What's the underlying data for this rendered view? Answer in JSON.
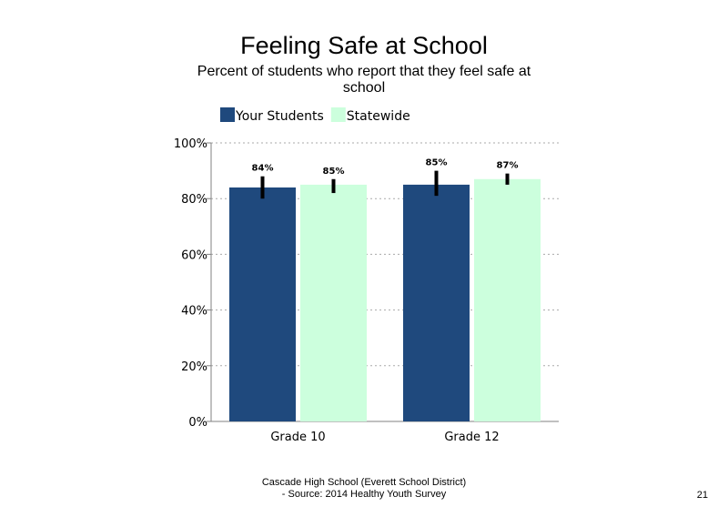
{
  "slide": {
    "title": "Feeling Safe at School",
    "subtitle": "Percent of students  who report that they feel safe at school",
    "footer_line1": "Cascade High  School (Everett School District)",
    "footer_line2": "- Source: 2014 Healthy  Youth Survey",
    "page_number": "21"
  },
  "chart_data": {
    "type": "bar",
    "categories": [
      "Grade 10",
      "Grade 12"
    ],
    "series": [
      {
        "name": "Your Students",
        "color": "#1f497d",
        "values": [
          84,
          85
        ],
        "labels": [
          "84%",
          "85%"
        ],
        "error": [
          [
            80,
            88
          ],
          [
            81,
            90
          ]
        ]
      },
      {
        "name": "Statewide",
        "color": "#ccffdd",
        "values": [
          85,
          87
        ],
        "labels": [
          "85%",
          "87%"
        ],
        "error": [
          [
            82,
            87
          ],
          [
            85,
            89
          ]
        ]
      }
    ],
    "ylim": [
      0,
      100
    ],
    "yticks": [
      0,
      20,
      40,
      60,
      80,
      100
    ],
    "ytick_labels": [
      "0%",
      "20%",
      "40%",
      "60%",
      "80%",
      "100%"
    ],
    "grid": "dashed horizontal",
    "legend_position": "top-left"
  }
}
